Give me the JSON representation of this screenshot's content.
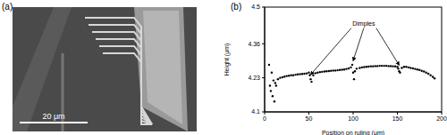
{
  "image_panel": {
    "label": "(a)",
    "scale_bar": "20 μm"
  },
  "chart_data": {
    "type": "scatter",
    "title": "(b)",
    "x_label": "Position on ruling (μm)",
    "y_label": "Height (μm)",
    "xlim": [
      0,
      200
    ],
    "xticks": [
      0,
      50,
      100,
      150,
      200
    ],
    "ylim": [
      4.1,
      4.5
    ],
    "yticks": [
      4.1,
      4.23,
      4.36,
      4.5
    ],
    "color": "#000000",
    "marker": "circle",
    "grid": false,
    "annotations": [
      {
        "text": "Dimples",
        "targets": [
          [
            52,
            4.232
          ],
          [
            100,
            4.285
          ],
          [
            152,
            4.268
          ]
        ]
      }
    ],
    "x": [
      5,
      6,
      7,
      8,
      9,
      10,
      11,
      12,
      13,
      15,
      17.5,
      20,
      22.5,
      25,
      27.5,
      30,
      32.5,
      35,
      37.5,
      40,
      42.5,
      45,
      47.5,
      50,
      51,
      52,
      53,
      55,
      57.5,
      60,
      62.5,
      65,
      67.5,
      70,
      72.5,
      75,
      77.5,
      80,
      82.5,
      85,
      87.5,
      90,
      92.5,
      95,
      97.5,
      99,
      100,
      101,
      102,
      104,
      107.5,
      110,
      112.5,
      115,
      117.5,
      120,
      122.5,
      125,
      127.5,
      130,
      132.5,
      135,
      137.5,
      140,
      142.5,
      145,
      147.5,
      150,
      151,
      152,
      153,
      155,
      157.5,
      160,
      162.5,
      165,
      167.5,
      170,
      172.5,
      175,
      177.5,
      180,
      182.5,
      185,
      187.5,
      190,
      192
    ],
    "values": [
      4.28,
      4.2,
      4.18,
      4.25,
      4.16,
      4.22,
      4.14,
      4.21,
      4.2,
      4.225,
      4.23,
      4.232,
      4.235,
      4.237,
      4.238,
      4.24,
      4.24,
      4.242,
      4.243,
      4.244,
      4.245,
      4.246,
      4.247,
      4.25,
      4.24,
      4.225,
      4.215,
      4.24,
      4.248,
      4.25,
      4.252,
      4.253,
      4.254,
      4.255,
      4.256,
      4.257,
      4.258,
      4.258,
      4.259,
      4.26,
      4.261,
      4.262,
      4.264,
      4.266,
      4.27,
      4.28,
      4.25,
      4.225,
      4.255,
      4.265,
      4.268,
      4.27,
      4.271,
      4.272,
      4.273,
      4.274,
      4.274,
      4.275,
      4.275,
      4.276,
      4.276,
      4.276,
      4.276,
      4.275,
      4.275,
      4.274,
      4.274,
      4.272,
      4.265,
      4.255,
      4.25,
      4.268,
      4.272,
      4.272,
      4.27,
      4.268,
      4.266,
      4.264,
      4.262,
      4.26,
      4.257,
      4.254,
      4.25,
      4.246,
      4.24,
      4.234,
      4.228
    ]
  }
}
